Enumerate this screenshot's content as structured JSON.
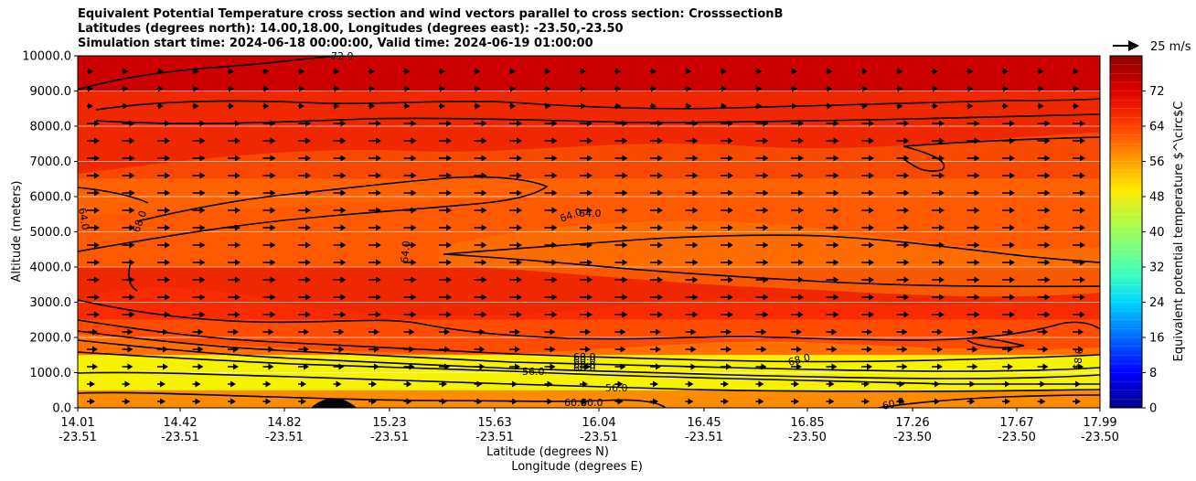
{
  "chart_data": {
    "type": "heatmap",
    "title_lines": [
      "Equivalent Potential Temperature cross section and wind vectors parallel to cross section: CrosssectionB",
      "Latitudes (degrees north): 14.00,18.00, Longitudes (degrees east): -23.50,-23.50",
      "Simulation start time: 2024-06-18 00:00:00, Valid time: 2024-06-19 01:00:00"
    ],
    "ylabel": "Altitude (meters)",
    "xlabel_lat": "Latitude (degrees N)",
    "xlabel_lon": "Longitude (degrees E)",
    "ylim": [
      0,
      10000
    ],
    "y_ticks": [
      "0.0",
      "1000.0",
      "2000.0",
      "3000.0",
      "4000.0",
      "5000.0",
      "6000.0",
      "7000.0",
      "8000.0",
      "9000.0",
      "10000.0"
    ],
    "x_ticks": [
      {
        "lat": "14.01",
        "lon": "-23.51"
      },
      {
        "lat": "14.42",
        "lon": "-23.51"
      },
      {
        "lat": "14.82",
        "lon": "-23.51"
      },
      {
        "lat": "15.23",
        "lon": "-23.51"
      },
      {
        "lat": "15.63",
        "lon": "-23.51"
      },
      {
        "lat": "16.04",
        "lon": "-23.51"
      },
      {
        "lat": "16.45",
        "lon": "-23.51"
      },
      {
        "lat": "16.85",
        "lon": "-23.50"
      },
      {
        "lat": "17.26",
        "lon": "-23.50"
      },
      {
        "lat": "17.67",
        "lon": "-23.50"
      },
      {
        "lat": "17.99",
        "lon": "-23.50"
      }
    ],
    "colorbar": {
      "label": "Equivalent potential temperature $^\\circ$C",
      "range": [
        0,
        80
      ],
      "ticks": [
        "0",
        "8",
        "16",
        "24",
        "32",
        "40",
        "48",
        "56",
        "64",
        "72"
      ]
    },
    "quiver_key": "25 m/s",
    "layers": [
      {
        "from_m": 0,
        "to_m": 500,
        "value": 60
      },
      {
        "from_m": 500,
        "to_m": 1500,
        "value": 53
      },
      {
        "from_m": 1500,
        "to_m": 2500,
        "value": 62
      },
      {
        "from_m": 2500,
        "to_m": 4000,
        "value": 68
      },
      {
        "from_m": 4000,
        "to_m": 6500,
        "value": 64
      },
      {
        "from_m": 6500,
        "to_m": 9000,
        "value": 68
      },
      {
        "from_m": 9000,
        "to_m": 10000,
        "value": 74
      }
    ],
    "contour_labels": [
      "72.0",
      "64.0",
      "68.0",
      "64.0",
      "64.0",
      "64.0",
      "68.0",
      "60.0",
      "56.0",
      "68.0",
      "60.0",
      "56.0",
      "60.0",
      "60.0",
      "68.0",
      "60.0",
      "68.0"
    ]
  }
}
